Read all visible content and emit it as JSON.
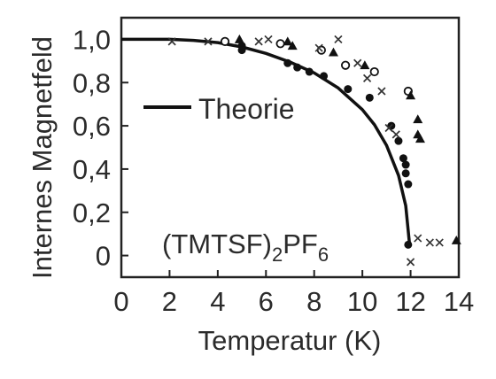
{
  "chart_data": {
    "type": "scatter",
    "xlabel": "Temperatur (K)",
    "ylabel": "Internes Magnetfeld",
    "xlim": [
      0,
      14
    ],
    "ylim": [
      -0.1,
      1.1
    ],
    "x_ticks": [
      "0",
      "2",
      "4",
      "6",
      "8",
      "10",
      "12",
      "14"
    ],
    "y_ticks": [
      "0",
      "0,2",
      "0,4",
      "0,6",
      "0,8",
      "1,0"
    ],
    "legend": {
      "position": "middle-left",
      "entries": [
        "Theorie"
      ]
    },
    "annotation": {
      "base": "(TMTSF)",
      "sub1": "2",
      "mid": "PF",
      "sub2": "6"
    },
    "series": [
      {
        "name": "Theorie",
        "kind": "line",
        "points": [
          [
            0,
            1.0
          ],
          [
            2,
            1.0
          ],
          [
            3,
            0.995
          ],
          [
            4,
            0.985
          ],
          [
            5,
            0.965
          ],
          [
            6,
            0.935
          ],
          [
            7,
            0.895
          ],
          [
            8,
            0.845
          ],
          [
            9,
            0.775
          ],
          [
            10,
            0.675
          ],
          [
            10.5,
            0.605
          ],
          [
            11,
            0.51
          ],
          [
            11.5,
            0.37
          ],
          [
            11.8,
            0.23
          ],
          [
            11.95,
            0.06
          ]
        ]
      },
      {
        "marker": "filled-circle",
        "points": [
          [
            5.0,
            0.97
          ],
          [
            5.0,
            0.95
          ],
          [
            6.9,
            0.89
          ],
          [
            7.3,
            0.87
          ],
          [
            7.8,
            0.85
          ],
          [
            8.4,
            0.83
          ],
          [
            9.4,
            0.77
          ],
          [
            10.3,
            0.73
          ],
          [
            11.2,
            0.6
          ],
          [
            11.5,
            0.53
          ],
          [
            11.7,
            0.45
          ],
          [
            11.8,
            0.42
          ],
          [
            11.8,
            0.38
          ],
          [
            11.9,
            0.33
          ],
          [
            11.9,
            0.05
          ]
        ]
      },
      {
        "marker": "open-circle",
        "points": [
          [
            4.3,
            0.99
          ],
          [
            6.6,
            0.98
          ],
          [
            8.3,
            0.95
          ],
          [
            9.3,
            0.88
          ],
          [
            10.5,
            0.85
          ],
          [
            11.9,
            0.76
          ]
        ]
      },
      {
        "marker": "triangle",
        "points": [
          [
            4.9,
            1.0
          ],
          [
            6.9,
            0.99
          ],
          [
            7.1,
            0.97
          ],
          [
            8.8,
            0.94
          ],
          [
            10.1,
            0.88
          ],
          [
            12.0,
            0.74
          ],
          [
            12.3,
            0.63
          ],
          [
            12.3,
            0.56
          ],
          [
            12.4,
            0.54
          ],
          [
            13.9,
            0.07
          ]
        ]
      },
      {
        "marker": "cross",
        "points": [
          [
            2.1,
            0.99
          ],
          [
            3.6,
            0.99
          ],
          [
            5.7,
            0.99
          ],
          [
            6.1,
            1.0
          ],
          [
            8.2,
            0.96
          ],
          [
            9.0,
            1.0
          ],
          [
            9.8,
            0.89
          ],
          [
            10.2,
            0.82
          ],
          [
            10.8,
            0.76
          ],
          [
            11.1,
            0.59
          ],
          [
            11.4,
            0.56
          ],
          [
            12.0,
            -0.03
          ],
          [
            12.3,
            0.08
          ],
          [
            12.8,
            0.06
          ],
          [
            13.2,
            0.06
          ]
        ]
      }
    ]
  }
}
